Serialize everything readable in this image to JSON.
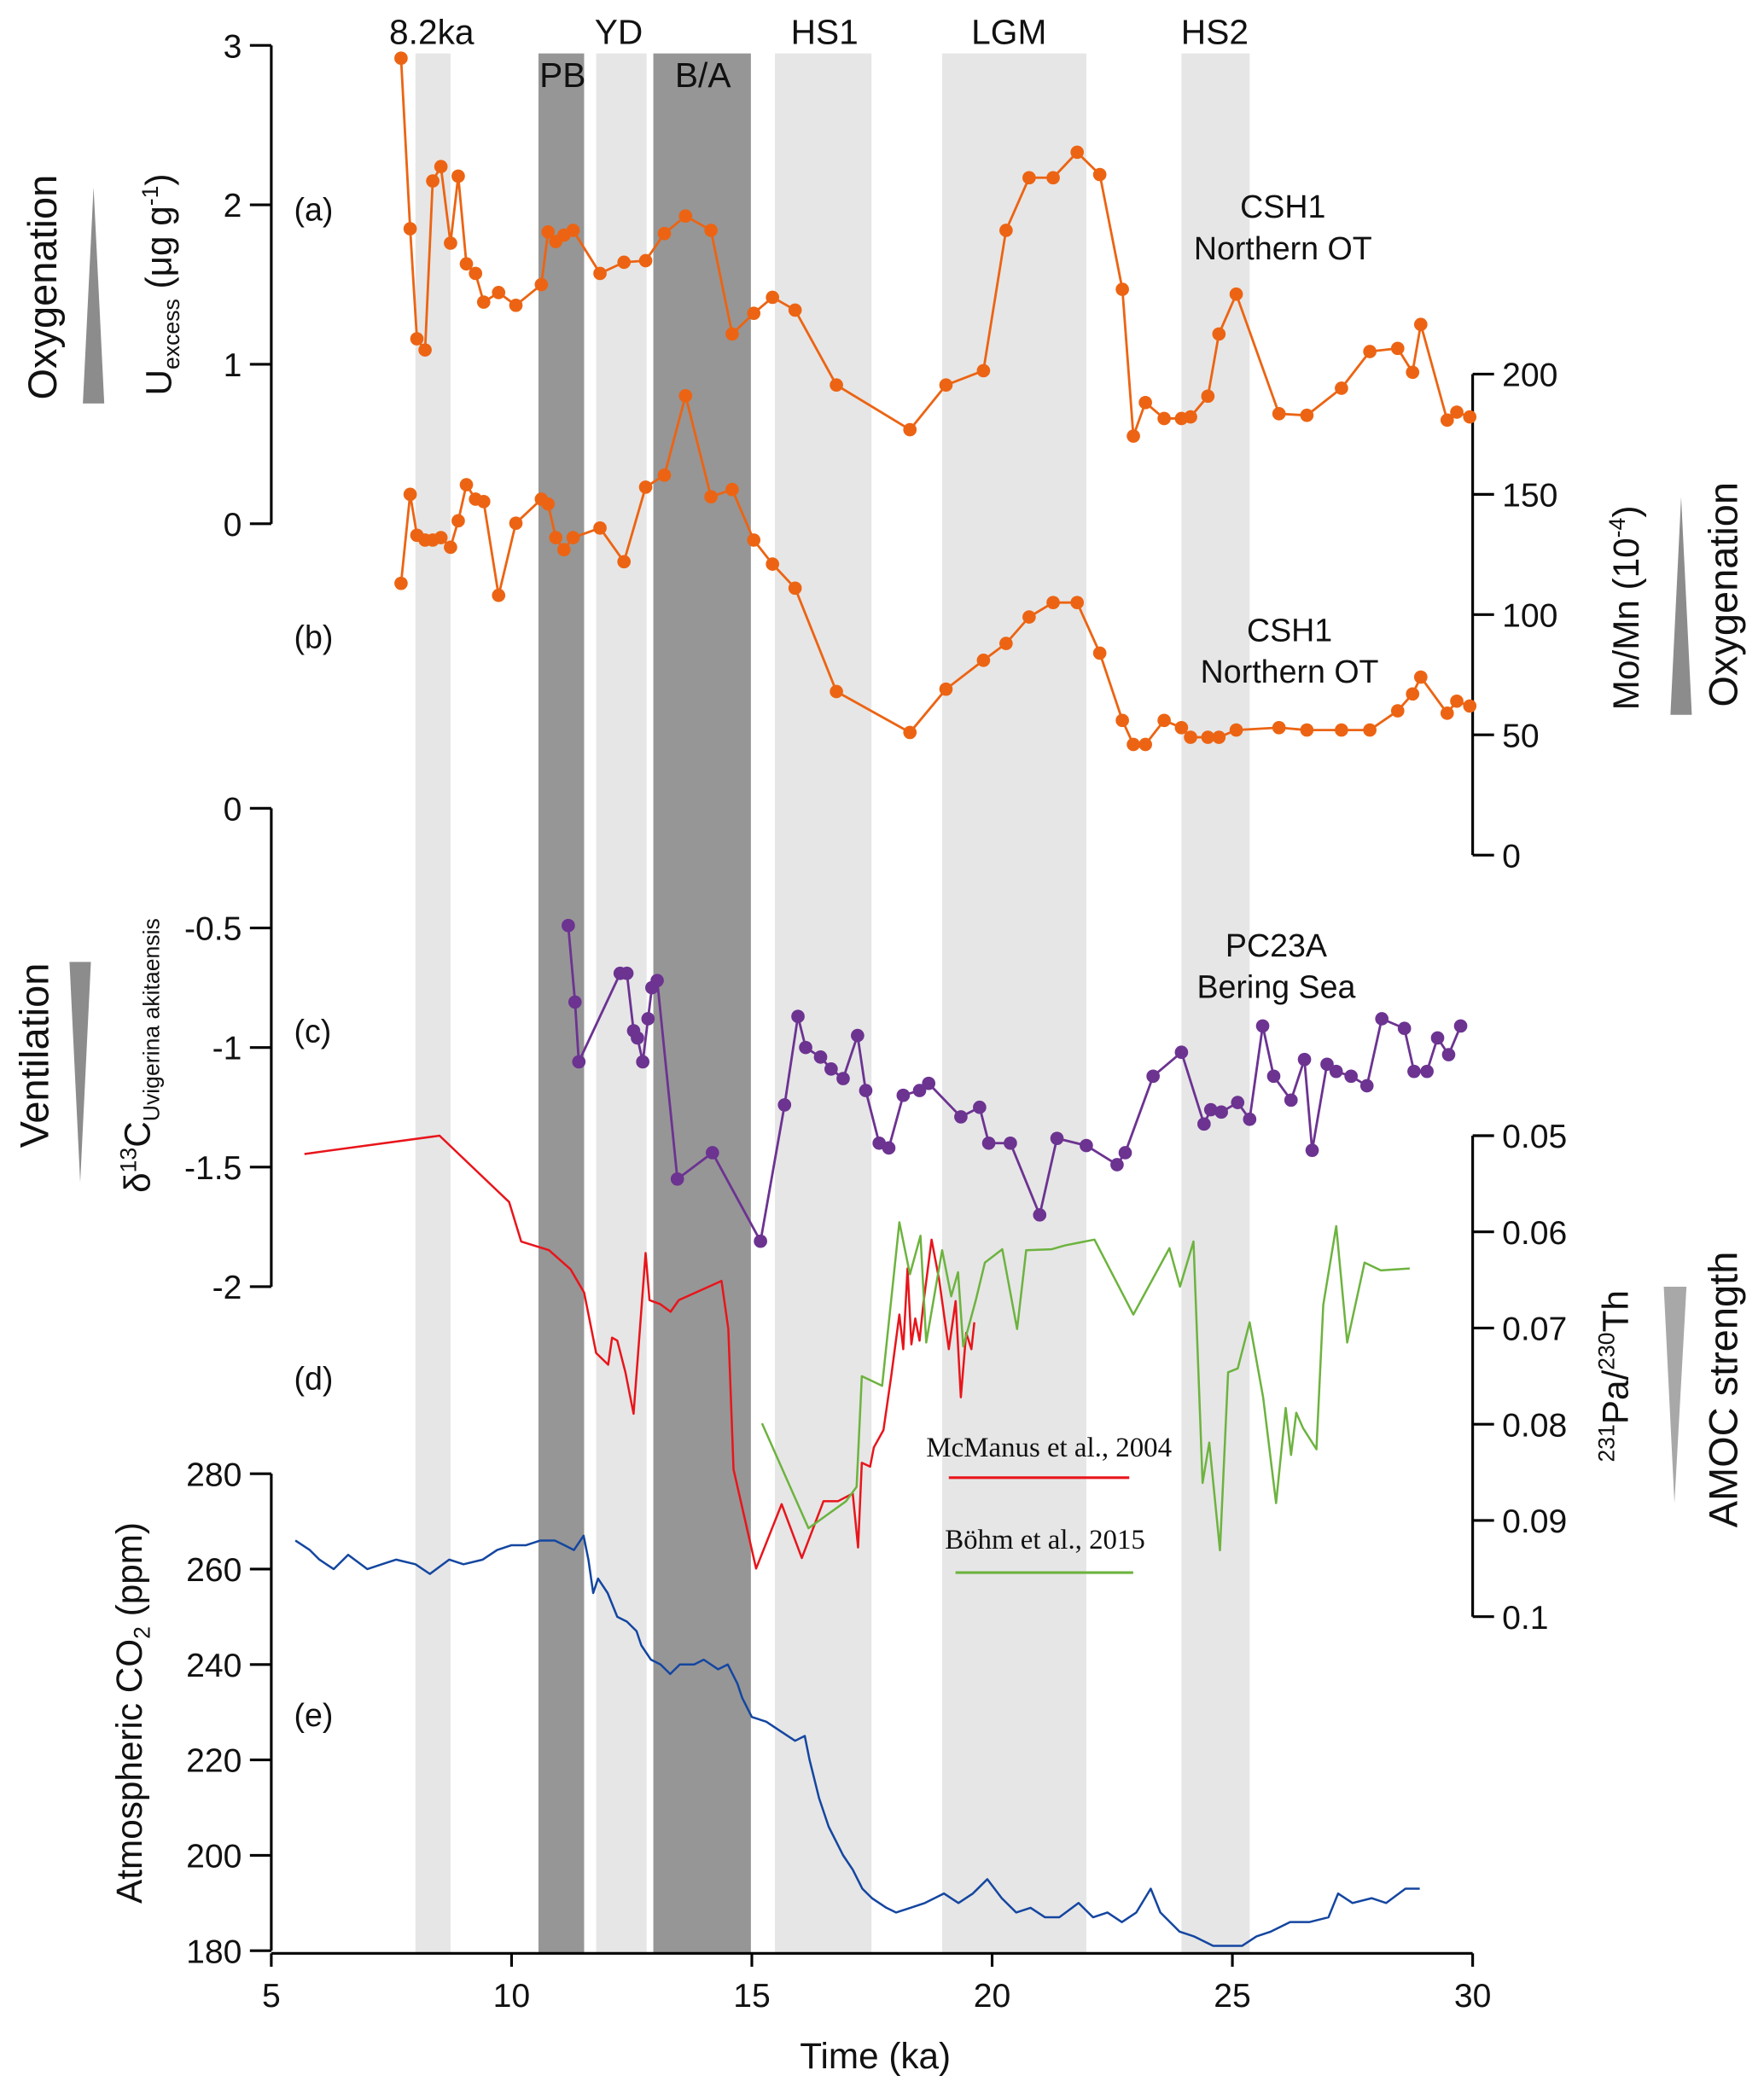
{
  "chart_data": {
    "type": "line",
    "xlabel": "Time (ka)",
    "xlim": [
      5,
      30
    ],
    "xticks": [
      5,
      10,
      15,
      20,
      25,
      30
    ],
    "bands": [
      {
        "label": "8.2ka",
        "range": [
          8.0,
          8.73
        ],
        "shade": "light"
      },
      {
        "label": "PB",
        "range": [
          10.56,
          11.51
        ],
        "shade": "dark"
      },
      {
        "label": "YD",
        "range": [
          11.76,
          12.81
        ],
        "shade": "light"
      },
      {
        "label": "B/A",
        "range": [
          12.95,
          14.98
        ],
        "shade": "dark"
      },
      {
        "label": "HS1",
        "range": [
          15.48,
          17.49
        ],
        "shade": "light"
      },
      {
        "label": "LGM",
        "range": [
          18.96,
          21.96
        ],
        "shade": "light"
      },
      {
        "label": "HS2",
        "range": [
          23.94,
          25.36
        ],
        "shade": "light"
      }
    ],
    "colors": {
      "light_band": "#e6e6e6",
      "dark_band": "#969696",
      "arrow": "#8c8c8c"
    },
    "panels": [
      {
        "id": "a",
        "panel_label": "(a)",
        "axis": "left",
        "ylabel_parts": [
          "U",
          "excess",
          " (μg g",
          "-1",
          ")"
        ],
        "ylim": [
          0,
          3
        ],
        "yticks": [
          0,
          1,
          2,
          3
        ],
        "side_label": "Oxygenation",
        "annotation": [
          "CSH1",
          "Northern OT"
        ],
        "series": [
          {
            "name": "CSH1 Uexcess",
            "color": "#ec6413",
            "markers": true,
            "x": [
              7.7,
              7.89,
              8.03,
              8.2,
              8.36,
              8.53,
              8.73,
              8.89,
              9.06,
              9.25,
              9.42,
              9.73,
              10.09,
              10.62,
              10.76,
              10.92,
              11.09,
              11.28,
              11.84,
              12.34,
              12.79,
              13.18,
              13.62,
              14.15,
              14.59,
              15.04,
              15.43,
              15.9,
              16.76,
              18.29,
              19.04,
              19.82,
              20.29,
              20.77,
              21.27,
              21.77,
              22.24,
              22.71,
              22.94,
              23.19,
              23.58,
              23.94,
              24.13,
              24.49,
              24.72,
              25.08,
              25.97,
              26.55,
              27.27,
              27.86,
              28.44,
              28.75,
              28.92,
              29.47,
              29.67,
              29.94
            ],
            "y": [
              2.92,
              1.85,
              1.16,
              1.09,
              2.15,
              2.24,
              1.76,
              2.18,
              1.63,
              1.57,
              1.39,
              1.45,
              1.37,
              1.5,
              1.83,
              1.77,
              1.81,
              1.84,
              1.57,
              1.64,
              1.65,
              1.82,
              1.93,
              1.84,
              1.19,
              1.32,
              1.42,
              1.34,
              0.87,
              0.59,
              0.87,
              0.96,
              1.84,
              2.17,
              2.17,
              2.33,
              2.19,
              1.47,
              0.55,
              0.76,
              0.66,
              0.66,
              0.67,
              0.8,
              1.19,
              1.44,
              0.69,
              0.68,
              0.85,
              1.08,
              1.1,
              0.95,
              1.25,
              0.65,
              0.7,
              0.67
            ]
          }
        ]
      },
      {
        "id": "b",
        "panel_label": "(b)",
        "axis": "right",
        "ylabel_parts": [
          "Mo/Mn (10",
          "-4",
          ")"
        ],
        "ylim": [
          0,
          200
        ],
        "yticks": [
          0,
          50,
          100,
          150,
          200
        ],
        "side_label": "Oxygenation",
        "annotation": [
          "CSH1",
          "Northern OT"
        ],
        "series": [
          {
            "name": "CSH1 Mo/Mn",
            "color": "#ec6413",
            "markers": true,
            "x": [
              7.7,
              7.89,
              8.03,
              8.2,
              8.36,
              8.53,
              8.73,
              8.89,
              9.06,
              9.25,
              9.42,
              9.73,
              10.09,
              10.62,
              10.76,
              10.92,
              11.09,
              11.28,
              11.84,
              12.34,
              12.79,
              13.18,
              13.62,
              14.15,
              14.59,
              15.04,
              15.43,
              15.9,
              16.76,
              18.29,
              19.04,
              19.82,
              20.29,
              20.77,
              21.27,
              21.77,
              22.24,
              22.71,
              22.94,
              23.19,
              23.58,
              23.94,
              24.13,
              24.49,
              24.72,
              25.08,
              25.97,
              26.55,
              27.27,
              27.86,
              28.44,
              28.75,
              28.92,
              29.47,
              29.67,
              29.94
            ],
            "y": [
              113,
              150,
              133,
              131,
              131,
              132,
              128,
              139,
              154,
              148,
              147,
              108,
              138,
              148,
              146,
              132,
              127,
              132,
              136,
              122,
              153,
              158,
              191,
              149,
              152,
              131,
              121,
              111,
              68,
              51,
              69,
              81,
              88,
              99,
              105,
              105,
              84,
              56,
              46,
              46,
              56,
              53,
              49,
              49,
              49,
              52,
              53,
              52,
              52,
              52,
              60,
              67,
              74,
              59,
              64,
              62
            ]
          }
        ]
      },
      {
        "id": "c",
        "panel_label": "(c)",
        "axis": "left",
        "ylabel_parts": [
          "δ",
          "13",
          "C",
          "Uvigerina akitaensis"
        ],
        "ylim": [
          -2,
          0
        ],
        "yticks": [
          0,
          -0.5,
          -1,
          -1.5,
          -2
        ],
        "side_label": "Ventilation",
        "annotation": [
          "PC23A",
          "Bering Sea"
        ],
        "series": [
          {
            "name": "PC23A δ13C",
            "color": "#6c3391",
            "markers": true,
            "x": [
              11.18,
              11.32,
              11.4,
              12.26,
              12.4,
              12.54,
              12.62,
              12.73,
              12.84,
              12.92,
              13.03,
              13.45,
              14.18,
              15.18,
              15.68,
              15.96,
              16.12,
              16.43,
              16.65,
              16.9,
              17.2,
              17.37,
              17.65,
              17.85,
              18.15,
              18.49,
              18.68,
              19.35,
              19.74,
              19.93,
              20.38,
              20.99,
              21.35,
              21.96,
              22.6,
              22.77,
              23.35,
              23.94,
              24.41,
              24.55,
              24.77,
              25.11,
              25.36,
              25.63,
              25.86,
              26.22,
              26.5,
              26.66,
              26.97,
              27.16,
              27.47,
              27.8,
              28.11,
              28.58,
              28.78,
              29.05,
              29.27,
              29.5,
              29.75
            ],
            "y": [
              -0.49,
              -0.81,
              -1.06,
              -0.69,
              -0.69,
              -0.93,
              -0.96,
              -1.06,
              -0.88,
              -0.75,
              -0.72,
              -1.55,
              -1.44,
              -1.81,
              -1.24,
              -0.87,
              -1.0,
              -1.04,
              -1.09,
              -1.13,
              -0.95,
              -1.18,
              -1.4,
              -1.42,
              -1.2,
              -1.18,
              -1.15,
              -1.29,
              -1.25,
              -1.4,
              -1.4,
              -1.7,
              -1.38,
              -1.41,
              -1.49,
              -1.44,
              -1.12,
              -1.02,
              -1.32,
              -1.26,
              -1.27,
              -1.23,
              -1.3,
              -0.91,
              -1.12,
              -1.22,
              -1.05,
              -1.43,
              -1.07,
              -1.1,
              -1.12,
              -1.16,
              -0.88,
              -0.92,
              -1.1,
              -1.1,
              -0.96,
              -1.03,
              -0.91
            ]
          }
        ]
      },
      {
        "id": "d",
        "panel_label": "(d)",
        "axis": "right",
        "ylabel_parts": [
          "231",
          "Pa/",
          "230",
          "Th"
        ],
        "ylim": [
          0.1,
          0.05
        ],
        "yticks": [
          0.05,
          0.06,
          0.07,
          0.08,
          0.09,
          0.1
        ],
        "side_label": "AMOC strength",
        "series": [
          {
            "name": "McManus et al., 2004",
            "color": "#e8151b",
            "markers": false,
            "x": [
              5.69,
              8.5,
              9.95,
              10.2,
              10.78,
              11.23,
              11.51,
              11.76,
              12.01,
              12.09,
              12.2,
              12.37,
              12.54,
              12.79,
              12.87,
              13.09,
              13.31,
              13.48,
              14.37,
              14.51,
              14.62,
              15.09,
              15.62,
              16.04,
              16.49,
              16.79,
              17.1,
              17.21,
              17.29,
              17.46,
              17.54,
              17.74,
              17.9,
              18.07,
              18.15,
              18.24,
              18.32,
              18.4,
              18.49,
              18.57,
              18.74,
              18.9,
              19.1,
              19.24,
              19.35,
              19.46,
              19.57,
              19.63
            ],
            "y": [
              0.0519,
              0.05,
              0.0569,
              0.061,
              0.0619,
              0.0639,
              0.0663,
              0.0726,
              0.0738,
              0.071,
              0.0713,
              0.0746,
              0.0789,
              0.0622,
              0.0671,
              0.0675,
              0.0683,
              0.0671,
              0.0651,
              0.0701,
              0.0847,
              0.095,
              0.0883,
              0.0939,
              0.088,
              0.088,
              0.0872,
              0.0928,
              0.084,
              0.0844,
              0.0824,
              0.0806,
              0.075,
              0.0686,
              0.0722,
              0.0638,
              0.0717,
              0.069,
              0.0713,
              0.0674,
              0.0608,
              0.065,
              0.0722,
              0.0672,
              0.0772,
              0.0705,
              0.0722,
              0.0694
            ]
          },
          {
            "name": "Böhm et al., 2015",
            "color": "#6db33f",
            "markers": false,
            "x": [
              15.21,
              16.18,
              16.96,
              17.18,
              17.29,
              17.71,
              18.07,
              18.29,
              18.51,
              18.63,
              18.96,
              19.15,
              19.29,
              19.4,
              19.66,
              19.85,
              20.21,
              20.52,
              20.71,
              21.24,
              21.52,
              22.13,
              22.94,
              23.69,
              23.91,
              24.19,
              24.38,
              24.52,
              24.74,
              24.91,
              25.11,
              25.36,
              25.64,
              25.91,
              26.11,
              26.22,
              26.33,
              26.47,
              26.75,
              26.89,
              27.16,
              27.39,
              27.75,
              28.09,
              28.69
            ],
            "y": [
              0.0799,
              0.0908,
              0.088,
              0.0865,
              0.075,
              0.076,
              0.059,
              0.0644,
              0.0604,
              0.0715,
              0.0619,
              0.0667,
              0.0642,
              0.0719,
              0.0671,
              0.0632,
              0.0618,
              0.0701,
              0.0619,
              0.0618,
              0.0614,
              0.0608,
              0.0686,
              0.0617,
              0.0657,
              0.061,
              0.0861,
              0.0819,
              0.0931,
              0.0746,
              0.0742,
              0.0694,
              0.0772,
              0.0882,
              0.0783,
              0.0832,
              0.0788,
              0.0804,
              0.0826,
              0.0676,
              0.0594,
              0.0715,
              0.0632,
              0.064,
              0.0638
            ]
          }
        ]
      },
      {
        "id": "e",
        "panel_label": "(e)",
        "axis": "left",
        "ylabel_parts": [
          "Atmospheric CO",
          "2",
          " (ppm)"
        ],
        "ylim": [
          180,
          280
        ],
        "yticks": [
          180,
          200,
          220,
          240,
          260,
          280
        ],
        "series": [
          {
            "name": "Atmospheric CO2",
            "color": "#1446a0",
            "markers": false,
            "x": [
              5.5,
              5.8,
              6.0,
              6.3,
              6.6,
              7.0,
              7.3,
              7.6,
              8.0,
              8.3,
              8.7,
              9.0,
              9.4,
              9.7,
              10.0,
              10.3,
              10.6,
              10.9,
              11.1,
              11.3,
              11.5,
              11.6,
              11.7,
              11.8,
              12.0,
              12.2,
              12.4,
              12.6,
              12.7,
              12.9,
              13.1,
              13.3,
              13.5,
              13.8,
              14.0,
              14.3,
              14.5,
              14.7,
              14.8,
              15.0,
              15.3,
              15.6,
              15.9,
              16.1,
              16.2,
              16.4,
              16.6,
              16.9,
              17.1,
              17.3,
              17.5,
              17.8,
              18.0,
              18.3,
              18.6,
              19.0,
              19.3,
              19.6,
              19.9,
              20.2,
              20.5,
              20.8,
              21.1,
              21.4,
              21.8,
              22.1,
              22.4,
              22.7,
              23.0,
              23.3,
              23.5,
              23.9,
              24.2,
              24.6,
              24.9,
              25.2,
              25.5,
              25.8,
              26.2,
              26.6,
              27.0,
              27.2,
              27.5,
              27.9,
              28.2,
              28.6,
              28.9
            ],
            "y": [
              266,
              264,
              262,
              260,
              263,
              260,
              261,
              262,
              261,
              259,
              262,
              261,
              262,
              264,
              265,
              265,
              266,
              266,
              265,
              264,
              267,
              262,
              255,
              258,
              255,
              250,
              249,
              247,
              244,
              241,
              240,
              238,
              240,
              240,
              241,
              239,
              240,
              236,
              233,
              229,
              228,
              226,
              224,
              225,
              220,
              212,
              206,
              200,
              197,
              193,
              191,
              189,
              188,
              189,
              190,
              192,
              190,
              192,
              195,
              191,
              188,
              189,
              187,
              187,
              190,
              187,
              188,
              186,
              188,
              193,
              188,
              184,
              183,
              181,
              181,
              181,
              183,
              184,
              186,
              186,
              187,
              192,
              190,
              191,
              190,
              193,
              193
            ]
          }
        ]
      }
    ],
    "legend": [
      "McManus et al., 2004",
      "Böhm et al., 2015"
    ]
  }
}
